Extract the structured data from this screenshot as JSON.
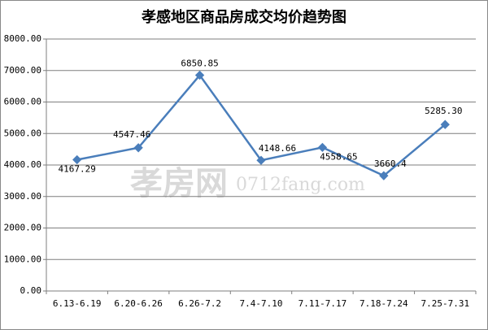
{
  "chart_data": {
    "type": "line",
    "title": "孝感地区商品房成交均价趋势图",
    "categories": [
      "6.13-6.19",
      "6.20-6.26",
      "6.26-7.2",
      "7.4-7.10",
      "7.11-7.17",
      "7.18-7.24",
      "7.25-7.31"
    ],
    "series": [
      {
        "color": "#4a7ebb",
        "values": [
          4167.29,
          4547.46,
          6850.85,
          4148.66,
          4558.65,
          3660.4,
          5285.3
        ],
        "value_labels": [
          "4167.29",
          "4547.46",
          "6850.85",
          "4148.66",
          "4558.65",
          "3660.4",
          "5285.30"
        ]
      }
    ],
    "ylim": [
      0,
      8000
    ],
    "yticks": [
      {
        "value": 0,
        "label": "0.00"
      },
      {
        "value": 1000,
        "label": "1000.00"
      },
      {
        "value": 2000,
        "label": "2000.00"
      },
      {
        "value": 3000,
        "label": "3000.00"
      },
      {
        "value": 4000,
        "label": "4000.00"
      },
      {
        "value": 5000,
        "label": "5000.00"
      },
      {
        "value": 6000,
        "label": "6000.00"
      },
      {
        "value": 7000,
        "label": "7000.00"
      },
      {
        "value": 8000,
        "label": "8000.00"
      }
    ],
    "grid": true,
    "annotations": [
      "孝房网",
      "0712fang.com"
    ]
  }
}
